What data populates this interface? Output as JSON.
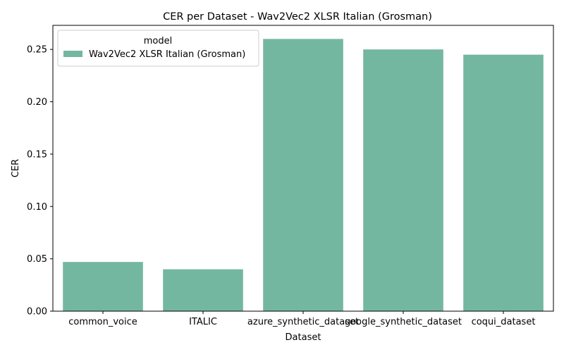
{
  "chart_data": {
    "type": "bar",
    "title": "CER per Dataset - Wav2Vec2 XLSR Italian (Grosman)",
    "xlabel": "Dataset",
    "ylabel": "CER",
    "categories": [
      "common_voice",
      "ITALIC",
      "azure_synthetic_dataset",
      "google_synthetic_dataset",
      "coqui_dataset"
    ],
    "series": [
      {
        "name": "Wav2Vec2 XLSR Italian (Grosman)",
        "values": [
          0.047,
          0.04,
          0.26,
          0.25,
          0.245
        ]
      }
    ],
    "ylim": [
      0,
      0.273
    ],
    "yticks": [
      0.0,
      0.05,
      0.1,
      0.15,
      0.2,
      0.25
    ],
    "ytick_labels": [
      "0.00",
      "0.05",
      "0.10",
      "0.15",
      "0.20",
      "0.25"
    ],
    "legend": {
      "title": "model",
      "position": "top-left"
    },
    "grid": false,
    "colors": {
      "bar": "#74b7a0"
    }
  }
}
